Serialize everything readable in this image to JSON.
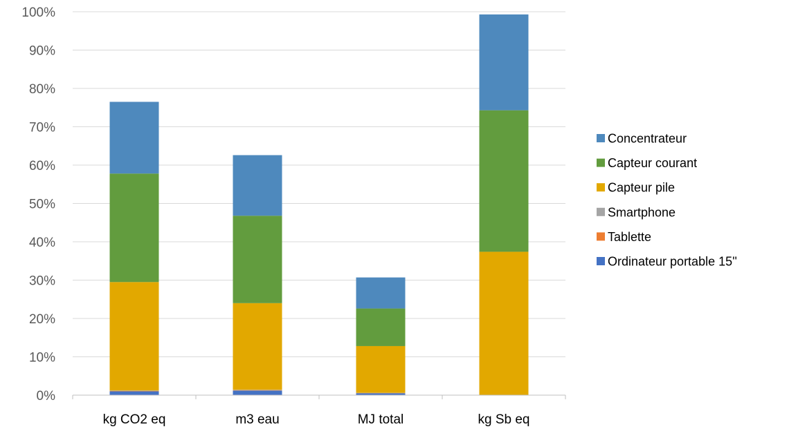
{
  "chart_data": {
    "type": "bar",
    "stacked": true,
    "categories": [
      "kg CO2 eq",
      "m3 eau",
      "MJ total",
      "kg Sb eq"
    ],
    "y_ticks": [
      "0%",
      "10%",
      "20%",
      "30%",
      "40%",
      "50%",
      "60%",
      "70%",
      "80%",
      "90%",
      "100%"
    ],
    "ylim": [
      0,
      100
    ],
    "grid": true,
    "legend_position": "right",
    "series": [
      {
        "name": "Ordinateur portable 15''",
        "color": "#4472C4",
        "values": [
          1.0,
          1.2,
          0.5,
          0.0
        ]
      },
      {
        "name": "Tablette",
        "color": "#ED7D31",
        "values": [
          0.1,
          0.1,
          0.05,
          0.0
        ]
      },
      {
        "name": "Smartphone",
        "color": "#A5A5A5",
        "values": [
          0.1,
          0.1,
          0.05,
          0.0
        ]
      },
      {
        "name": "Capteur pile",
        "color": "#E2A800",
        "values": [
          28.3,
          22.6,
          12.2,
          37.4
        ]
      },
      {
        "name": "Capteur courant",
        "color": "#629C3E",
        "values": [
          28.3,
          22.8,
          9.8,
          36.9
        ]
      },
      {
        "name": "Concentrateur",
        "color": "#4E89BD",
        "values": [
          18.7,
          15.8,
          8.1,
          25.0
        ]
      }
    ]
  }
}
